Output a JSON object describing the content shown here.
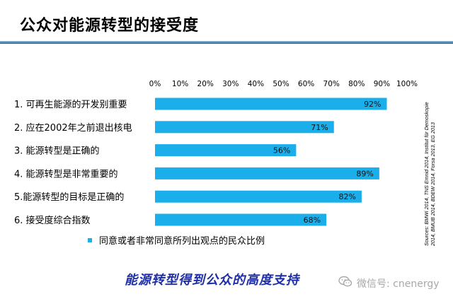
{
  "title": "公众对能源转型的接受度",
  "chart_data": {
    "type": "bar",
    "orientation": "horizontal",
    "categories": [
      "1. 可再生能源的开发别重要",
      "2. 应在2002年之前退出核电",
      "3. 能源转型是正确的",
      "4. 能源转型是非常重要的",
      "5.能源转型的目标是正确的",
      "6. 接受度综合指数"
    ],
    "values": [
      92,
      71,
      56,
      89,
      82,
      68
    ],
    "data_labels": [
      "92%",
      "71%",
      "56%",
      "89%",
      "82%",
      "68%"
    ],
    "x_ticks": [
      "0%",
      "10%",
      "20%",
      "30%",
      "40%",
      "50%",
      "60%",
      "70%",
      "80%",
      "90%",
      "100%"
    ],
    "xlim": [
      0,
      100
    ],
    "legend": "同意或者非常同意所列出观点的民众比例",
    "legend_placement": "bottom",
    "grid": false,
    "colors": {
      "bar": "#1aaeea",
      "legend": "#1aaeea"
    }
  },
  "source": {
    "line1": "Sources: BMWi 2014, TNS Emnid 2014, Institut für Demoskopie",
    "line2": "2014, BMUB 2014, BDEW 2014, Forsa 2013, EG 2013"
  },
  "tagline": "能源转型得到公众的高度支持",
  "watermark": {
    "icon": "wechat-icon",
    "text": "微信号: cnenergy"
  }
}
